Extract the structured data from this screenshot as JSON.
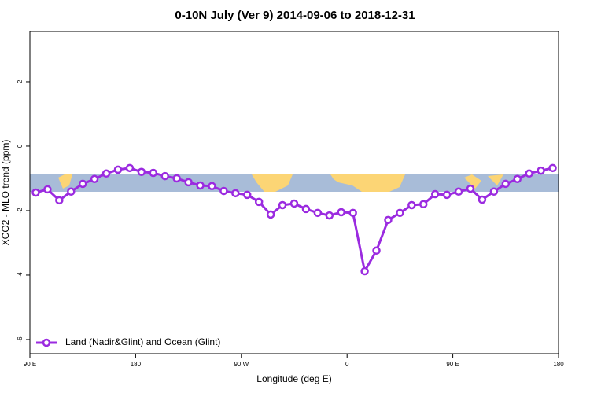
{
  "chart_data": {
    "type": "line",
    "title": "0-10N July (Ver 9)   2014-09-06 to 2018-12-31",
    "x_label": "Longitude (deg E)",
    "y_label": "XCO2 - MLO trend (ppm)",
    "xlim": [
      90,
      540
    ],
    "xticks": [
      {
        "value": 90,
        "label": "90 E"
      },
      {
        "value": 180,
        "label": "180"
      },
      {
        "value": 270,
        "label": "90 W"
      },
      {
        "value": 360,
        "label": "0"
      },
      {
        "value": 450,
        "label": "90 E"
      },
      {
        "value": 540,
        "label": "180"
      }
    ],
    "ylim": [
      -6.44,
      3.56
    ],
    "yticks": [
      2,
      0,
      -2,
      -4,
      -6
    ],
    "legend": "bottom-left",
    "x": [
      95,
      105,
      115,
      125,
      135,
      145,
      155,
      165,
      175,
      185,
      195,
      205,
      215,
      225,
      235,
      245,
      255,
      265,
      275,
      285,
      295,
      305,
      315,
      325,
      335,
      345,
      355,
      365,
      375,
      385,
      395,
      405,
      415,
      425,
      435,
      445,
      455,
      465,
      475,
      485,
      495,
      505,
      515,
      525,
      535
    ],
    "series": [
      {
        "name": "Land (Nadir&Glint) and Ocean (Glint)",
        "color": "#9b2be0",
        "values": [
          -1.44,
          -1.34,
          -1.68,
          -1.41,
          -1.17,
          -1.02,
          -0.85,
          -0.73,
          -0.68,
          -0.8,
          -0.83,
          -0.93,
          -1.0,
          -1.12,
          -1.22,
          -1.24,
          -1.39,
          -1.46,
          -1.51,
          -1.73,
          -2.12,
          -1.83,
          -1.78,
          -1.95,
          -2.07,
          -2.15,
          -2.05,
          -2.07,
          -3.88,
          -3.24,
          -2.29,
          -2.07,
          -1.83,
          -1.8,
          -1.49,
          -1.51,
          -1.41,
          -1.32,
          -1.66,
          -1.41,
          -1.17,
          -1.02,
          -0.85,
          -0.76,
          -0.68
        ]
      }
    ]
  }
}
